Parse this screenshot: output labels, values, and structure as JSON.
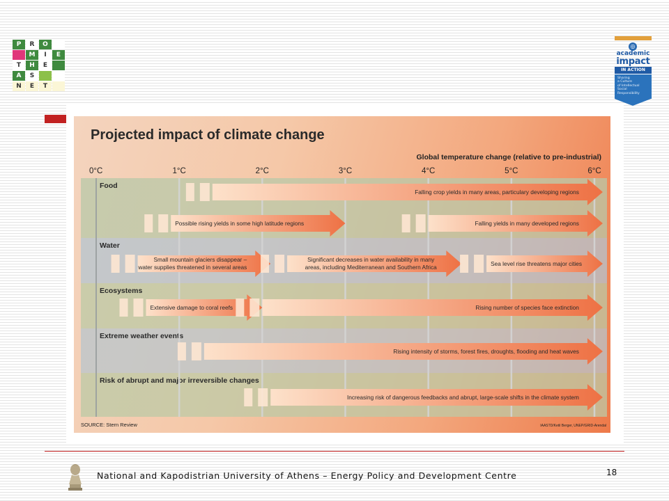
{
  "logo": {
    "cells": [
      {
        "t": "P",
        "bg": "#3f8a3f",
        "c": "#ffffff"
      },
      {
        "t": "R",
        "bg": "#ffffff",
        "c": "#333"
      },
      {
        "t": "O",
        "bg": "#3f8a3f",
        "c": "#ffffff"
      },
      {
        "t": "",
        "bg": "#ffffff",
        "c": "#333"
      },
      {
        "t": "",
        "bg": "#e0367a",
        "c": "#ffffff"
      },
      {
        "t": "M",
        "bg": "#3f8a3f",
        "c": "#ffffff"
      },
      {
        "t": "I",
        "bg": "#ffffff",
        "c": "#333"
      },
      {
        "t": "E",
        "bg": "#3f8a3f",
        "c": "#ffffff"
      },
      {
        "t": "T",
        "bg": "#ffffff",
        "c": "#333"
      },
      {
        "t": "H",
        "bg": "#3f8a3f",
        "c": "#ffffff"
      },
      {
        "t": "E",
        "bg": "#ffffff",
        "c": "#333"
      },
      {
        "t": "",
        "bg": "#3f8a3f",
        "c": "#ffffff"
      },
      {
        "t": "A",
        "bg": "#3f8a3f",
        "c": "#ffffff"
      },
      {
        "t": "S",
        "bg": "#ffffff",
        "c": "#333"
      },
      {
        "t": "",
        "bg": "#8cc04a",
        "c": "#ffffff"
      },
      {
        "t": "",
        "bg": "#ffffff",
        "c": "#333"
      },
      {
        "t": "N",
        "bg": "#fbf6d6",
        "c": "#333"
      },
      {
        "t": "E",
        "bg": "#fbf6d6",
        "c": "#333"
      },
      {
        "t": "T",
        "bg": "#fbf6d6",
        "c": "#333"
      },
      {
        "t": "",
        "bg": "#fbf6d6",
        "c": "#333"
      }
    ]
  },
  "badge": {
    "word1": "academic",
    "word2": "impact",
    "band": "IN ACTION",
    "body_lines": [
      "Sharing",
      "a Culture",
      "of Intellectual",
      "Social",
      "Responsibility"
    ]
  },
  "chart": {
    "title": "Projected impact of climate change",
    "axis_title": "Global temperature change (relative to pre-industrial)",
    "ticks": [
      "0°C",
      "1°C",
      "2°C",
      "3°C",
      "4°C",
      "5°C",
      "6°C"
    ],
    "bands": [
      {
        "label": "Food",
        "color": "#b8c8a8"
      },
      {
        "label": "Water",
        "color": "#b4c4d0"
      },
      {
        "label": "Ecosystems",
        "color": "#bccaa6"
      },
      {
        "label": "Extreme weather events",
        "color": "#b8c6cc"
      },
      {
        "label": "Risk of abrupt and major irreversible changes",
        "color": "#bccaa6"
      }
    ],
    "arrows": [
      {
        "band": 0,
        "row": 0,
        "from": 1.4,
        "to": 6.1,
        "text": "Falling crop yields in many areas, particulary developing regions",
        "align": "end",
        "lines": 1
      },
      {
        "band": 0,
        "row": 1,
        "from": 0.9,
        "to": 3.0,
        "text": "Possible rising yields in some high latitude regions",
        "align": "start",
        "lines": 1
      },
      {
        "band": 0,
        "row": 1,
        "from": 4.0,
        "to": 6.1,
        "text": "Falling yields in many developed regions",
        "align": "end",
        "lines": 1
      },
      {
        "band": 1,
        "row": 0,
        "from": 0.5,
        "to": 2.1,
        "text": "Small mountain glaciers disappear –|water supplies threatened in several areas",
        "align": "end",
        "lines": 2
      },
      {
        "band": 1,
        "row": 0,
        "from": 2.3,
        "to": 4.4,
        "text": "Significant decreases in water availability in many|areas, including Mediterranean and Southern Africa",
        "align": "middle",
        "lines": 2
      },
      {
        "band": 1,
        "row": 0,
        "from": 4.7,
        "to": 6.1,
        "text": "Sea level rise threatens major cities",
        "align": "start",
        "lines": 1
      },
      {
        "band": 2,
        "row": 0,
        "from": 0.6,
        "to": 2.0,
        "text": "Extensive damage to coral reefs",
        "align": "start",
        "lines": 1
      },
      {
        "band": 2,
        "row": 0,
        "from": 2.0,
        "to": 6.1,
        "text": "Rising number of species face extinction",
        "align": "end",
        "lines": 1
      },
      {
        "band": 3,
        "row": 0,
        "from": 1.3,
        "to": 6.1,
        "text": "Rising intensity of storms, forest fires, droughts, flooding and heat waves",
        "align": "end",
        "lines": 1
      },
      {
        "band": 4,
        "row": 0,
        "from": 2.1,
        "to": 6.1,
        "text": "Increasing risk of dangerous feedbacks and abrupt, large-scale shifts in the climate system",
        "align": "end",
        "lines": 1
      }
    ],
    "source_left": "SOURCE: Stern Review",
    "source_right": "IAASTD/Ketil Berger, UNEP/GRID-Arendal"
  },
  "footer": {
    "institution": "National and Kapodistrian University of Athens – Energy Policy and Development Centre",
    "page_number": "18"
  }
}
